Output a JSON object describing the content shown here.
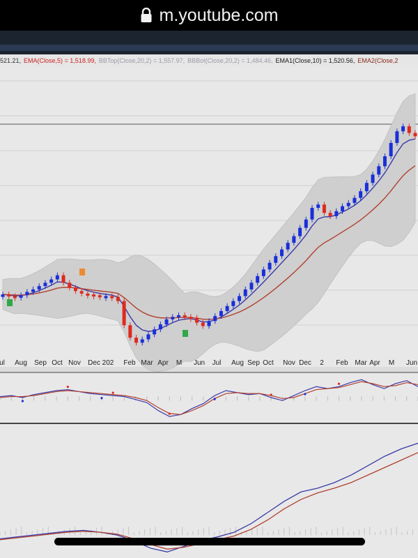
{
  "browser": {
    "url": "m.youtube.com",
    "icon": "lock-icon"
  },
  "indicator_line": [
    {
      "text": "521.21,",
      "color": "#333333"
    },
    {
      "text": "EMA(Close,5) = 1,518.99,",
      "color": "#cc2222"
    },
    {
      "text": "BBTop(Close,20,2) = 1,557.97,",
      "color": "#9a9aa8"
    },
    {
      "text": "BBBot(Close,20,2) = 1,484.46,",
      "color": "#9a9aa8"
    },
    {
      "text": "EMA1(Close,10) = 1,520.56,",
      "color": "#1a1a1a"
    },
    {
      "text": "EMA2(Close,2",
      "color": "#8a2a1a"
    }
  ],
  "x_axis_labels": [
    "ul",
    "Aug",
    "Sep",
    "Oct",
    "Nov",
    "Dec",
    "202",
    "Feb",
    "Mar",
    "Apr",
    "M",
    "Jun",
    "Jul",
    "Aug",
    "Sep",
    "Oct",
    "Nov",
    "Dec",
    "2",
    "Feb",
    "Mar",
    "Apr",
    "M",
    "Jun"
  ],
  "markers": {
    "green": "B",
    "orange": "S"
  },
  "colors": {
    "up_candle": "#1a2fd8",
    "down_candle": "#dd2a20",
    "ema_short": "#3a3aa8",
    "ema_long": "#b04030",
    "bollinger_band": "#cfcfcf",
    "chart_bg": "#e8e8e8",
    "buy_marker": "#2ea84a",
    "sell_marker": "#ee8a30"
  },
  "chart_data": [
    {
      "type": "candlestick",
      "title": "",
      "close": [
        1.2,
        1.0,
        0.8,
        1.1,
        1.5,
        1.8,
        2.2,
        2.6,
        3.0,
        3.5,
        2.6,
        2.0,
        1.6,
        1.3,
        1.2,
        1.1,
        1.0,
        1.0,
        0.9,
        0.4,
        -2.5,
        -4.0,
        -4.6,
        -4.2,
        -3.6,
        -3.0,
        -2.4,
        -1.8,
        -1.5,
        -1.3,
        -1.5,
        -1.6,
        -2.2,
        -2.6,
        -2.0,
        -1.4,
        -0.8,
        -0.2,
        0.4,
        1.0,
        1.8,
        2.6,
        3.4,
        4.2,
        5.0,
        5.8,
        6.6,
        7.4,
        8.2,
        9.2,
        10.2,
        11.6,
        12.0,
        11.0,
        10.6,
        11.2,
        11.8,
        12.2,
        12.8,
        13.6,
        14.6,
        15.6,
        16.6,
        17.8,
        19.4,
        20.8,
        21.4,
        20.6,
        20.2
      ],
      "ylim": [
        -6,
        23
      ]
    },
    {
      "type": "line",
      "series": [
        {
          "values": [
            0.2,
            0.3,
            0.1,
            0.4,
            0.6,
            0.8,
            0.9,
            0.7,
            0.5,
            0.4,
            0.3,
            0.2,
            -0.1,
            -0.4,
            -1.2,
            -1.8,
            -1.6,
            -1.0,
            -0.5,
            0.3,
            0.8,
            0.6,
            0.4,
            0.5,
            0.1,
            -0.2,
            0.3,
            0.8,
            1.2,
            1.0,
            1.2,
            1.6,
            1.9,
            1.4,
            1.0,
            1.5,
            1.8,
            1.2
          ]
        },
        {
          "values": [
            0.1,
            0.2,
            0.2,
            0.3,
            0.5,
            0.7,
            0.8,
            0.7,
            0.6,
            0.5,
            0.4,
            0.3,
            0.1,
            -0.2,
            -0.9,
            -1.5,
            -1.6,
            -1.2,
            -0.7,
            0.0,
            0.5,
            0.6,
            0.5,
            0.5,
            0.3,
            0.0,
            0.1,
            0.5,
            0.9,
            1.0,
            1.1,
            1.4,
            1.7,
            1.5,
            1.2,
            1.3,
            1.6,
            1.4
          ]
        }
      ],
      "ylim": [
        -2,
        2.2
      ]
    },
    {
      "type": "line",
      "series": [
        {
          "values": [
            -0.4,
            -0.2,
            0.0,
            0.2,
            0.4,
            0.5,
            0.3,
            0.0,
            -0.6,
            -1.4,
            -1.8,
            -1.2,
            -0.6,
            -0.2,
            0.3,
            1.2,
            2.4,
            3.6,
            4.6,
            5.0,
            5.6,
            6.4,
            7.4,
            8.4,
            9.2,
            9.8
          ]
        },
        {
          "values": [
            -0.5,
            -0.3,
            -0.1,
            0.1,
            0.3,
            0.4,
            0.3,
            0.1,
            -0.4,
            -1.0,
            -1.5,
            -1.3,
            -0.9,
            -0.5,
            -0.1,
            0.6,
            1.6,
            2.8,
            3.8,
            4.5,
            5.0,
            5.6,
            6.4,
            7.2,
            8.0,
            8.8
          ]
        }
      ],
      "ylim": [
        -2,
        10.5
      ]
    }
  ]
}
